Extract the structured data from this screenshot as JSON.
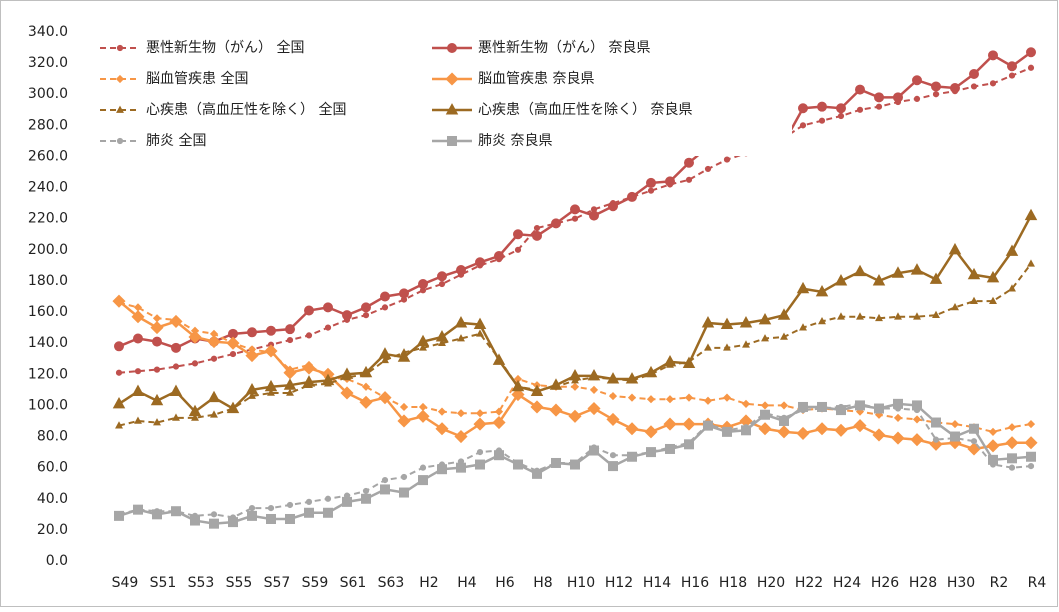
{
  "chart_data": {
    "type": "line",
    "categories": [
      "S49",
      null,
      "S51",
      null,
      "S53",
      null,
      "S55",
      null,
      "S57",
      null,
      "S59",
      null,
      "S61",
      null,
      "S63",
      null,
      "H2",
      null,
      "H4",
      null,
      "H6",
      null,
      "H8",
      null,
      "H10",
      null,
      "H12",
      null,
      "H14",
      null,
      "H16",
      null,
      "H18",
      null,
      "H20",
      null,
      "H22",
      null,
      "H24",
      null,
      "H26",
      null,
      "H28",
      null,
      "H30",
      null,
      "R2",
      null,
      "R4"
    ],
    "ylim": [
      0,
      340
    ],
    "yticks": [
      {
        "value": 0,
        "label": "0.0"
      },
      {
        "value": 20,
        "label": "20.0"
      },
      {
        "value": 40,
        "label": "40.0"
      },
      {
        "value": 60,
        "label": "60.0"
      },
      {
        "value": 80,
        "label": "80.0"
      },
      {
        "value": 100,
        "label": "100.0"
      },
      {
        "value": 120,
        "label": "120.0"
      },
      {
        "value": 140,
        "label": "140.0"
      },
      {
        "value": 160,
        "label": "160.0"
      },
      {
        "value": 180,
        "label": "180.0"
      },
      {
        "value": 200,
        "label": "200.0"
      },
      {
        "value": 220,
        "label": "220.0"
      },
      {
        "value": 240,
        "label": "240.0"
      },
      {
        "value": 260,
        "label": "260.0"
      },
      {
        "value": 280,
        "label": "280.0"
      },
      {
        "value": 300,
        "label": "300.0"
      },
      {
        "value": 320,
        "label": "320.0"
      },
      {
        "value": 340,
        "label": "340.0"
      }
    ],
    "grid": false,
    "legend": "top-left",
    "series": [
      {
        "name": "悪性新生物（がん） 全国",
        "color": "#c0504d",
        "dashed": true,
        "marker": "circle",
        "values": [
          121,
          122,
          123,
          125,
          127,
          130,
          133,
          136,
          139,
          142,
          145,
          150,
          155,
          158,
          163,
          168,
          174,
          178,
          184,
          190,
          194,
          200,
          214,
          217,
          220,
          226,
          230,
          234,
          238,
          242,
          245,
          252,
          258,
          262,
          268,
          272,
          280,
          283,
          286,
          290,
          292,
          295,
          297,
          300,
          302,
          305,
          307,
          312,
          317
        ]
      },
      {
        "name": "悪性新生物（がん） 奈良県",
        "color": "#c0504d",
        "dashed": false,
        "marker": "circle",
        "values": [
          138,
          143,
          141,
          137,
          143,
          141,
          146,
          147,
          148,
          149,
          161,
          163,
          158,
          163,
          170,
          172,
          178,
          183,
          187,
          192,
          196,
          210,
          209,
          217,
          226,
          222,
          228,
          234,
          243,
          244,
          256,
          266,
          265,
          275,
          273,
          269,
          291,
          292,
          291,
          303,
          298,
          298,
          309,
          305,
          304,
          313,
          325,
          318,
          327
        ]
      },
      {
        "name": "脳血管疾患 全国",
        "color": "#f79646",
        "dashed": true,
        "marker": "diamond",
        "values": [
          166,
          163,
          156,
          155,
          148,
          146,
          140,
          136,
          134,
          123,
          126,
          118,
          117,
          112,
          105,
          99,
          99,
          96,
          95,
          95,
          96,
          117,
          113,
          112,
          112,
          110,
          106,
          105,
          104,
          104,
          105,
          103,
          105,
          101,
          100,
          100,
          97,
          98,
          97,
          96,
          94,
          92,
          91,
          89,
          88,
          86,
          83,
          86,
          88
        ]
      },
      {
        "name": "脳血管疾患 奈良県",
        "color": "#f79646",
        "dashed": false,
        "marker": "diamond",
        "values": [
          167,
          157,
          150,
          154,
          144,
          141,
          140,
          132,
          135,
          121,
          124,
          120,
          108,
          102,
          105,
          90,
          93,
          85,
          80,
          88,
          89,
          107,
          99,
          97,
          93,
          98,
          91,
          85,
          83,
          88,
          88,
          88,
          86,
          90,
          85,
          83,
          82,
          85,
          84,
          87,
          81,
          79,
          78,
          75,
          76,
          72,
          74,
          76,
          76
        ]
      },
      {
        "name": "心疾患（高血圧性を除く） 全国",
        "color": "#9c6a22",
        "dashed": true,
        "marker": "triangle",
        "values": [
          87,
          90,
          89,
          92,
          92,
          94,
          98,
          106,
          108,
          108,
          113,
          114,
          118,
          120,
          129,
          134,
          137,
          140,
          143,
          146,
          130,
          112,
          110,
          112,
          116,
          118,
          117,
          116,
          120,
          126,
          128,
          137,
          137,
          139,
          143,
          144,
          150,
          154,
          157,
          157,
          156,
          157,
          157,
          158,
          163,
          167,
          167,
          175,
          191
        ]
      },
      {
        "name": "心疾患（高血圧性を除く） 奈良県",
        "color": "#9c6a22",
        "dashed": false,
        "marker": "triangle",
        "values": [
          101,
          109,
          103,
          109,
          96,
          105,
          98,
          110,
          112,
          113,
          115,
          116,
          120,
          121,
          133,
          131,
          141,
          144,
          153,
          152,
          129,
          112,
          109,
          113,
          119,
          119,
          117,
          117,
          121,
          128,
          127,
          153,
          152,
          153,
          155,
          158,
          175,
          173,
          180,
          186,
          180,
          185,
          187,
          181,
          200,
          184,
          182,
          199,
          222
        ]
      },
      {
        "name": "肺炎 全国",
        "color": "#a6a6a6",
        "dashed": true,
        "marker": "circle",
        "values": [
          30,
          33,
          32,
          32,
          29,
          30,
          28,
          34,
          34,
          36,
          38,
          40,
          42,
          45,
          52,
          54,
          60,
          62,
          64,
          70,
          71,
          63,
          58,
          63,
          63,
          73,
          68,
          68,
          70,
          73,
          76,
          88,
          84,
          86,
          95,
          92,
          97,
          98,
          99,
          101,
          98,
          98,
          97,
          78,
          79,
          77,
          62,
          60,
          61
        ]
      },
      {
        "name": "肺炎 奈良県",
        "color": "#a6a6a6",
        "dashed": false,
        "marker": "square",
        "values": [
          29,
          33,
          30,
          32,
          26,
          24,
          25,
          29,
          27,
          27,
          31,
          31,
          38,
          40,
          46,
          44,
          52,
          59,
          60,
          62,
          68,
          62,
          56,
          63,
          62,
          71,
          61,
          67,
          70,
          72,
          75,
          87,
          83,
          84,
          94,
          90,
          99,
          99,
          97,
          100,
          98,
          101,
          100,
          89,
          80,
          85,
          65,
          66,
          67
        ]
      }
    ]
  }
}
